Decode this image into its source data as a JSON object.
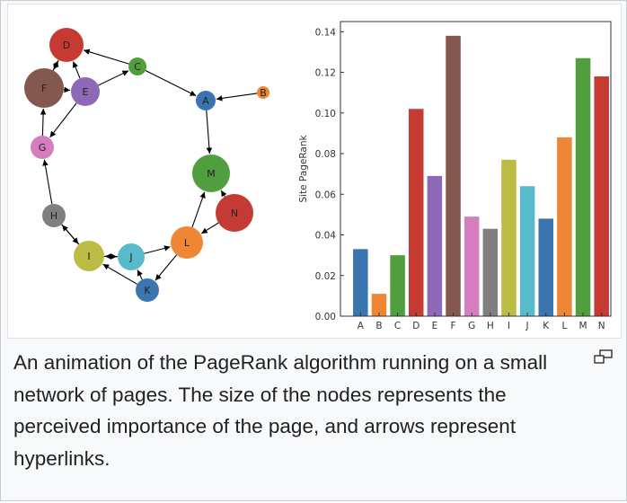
{
  "caption": "An animation of the PageRank algorithm running on a small network of pages. The size of the nodes represents the perceived importance of the page, and arrows represent hyperlinks.",
  "expand_icon": "magnify-clip-icon",
  "graph": {
    "nodes": [
      {
        "id": "A",
        "color": "#3a75af"
      },
      {
        "id": "B",
        "color": "#ef8636"
      },
      {
        "id": "C",
        "color": "#519e3e"
      },
      {
        "id": "D",
        "color": "#c53a32"
      },
      {
        "id": "E",
        "color": "#8d69b8"
      },
      {
        "id": "F",
        "color": "#84584e"
      },
      {
        "id": "G",
        "color": "#d57dbf"
      },
      {
        "id": "H",
        "color": "#7f7f7f"
      },
      {
        "id": "I",
        "color": "#bcbc45"
      },
      {
        "id": "J",
        "color": "#58bbcc"
      },
      {
        "id": "K",
        "color": "#3a75af"
      },
      {
        "id": "L",
        "color": "#ef8636"
      },
      {
        "id": "M",
        "color": "#519e3e"
      },
      {
        "id": "N",
        "color": "#c53a32"
      }
    ],
    "edges": [
      [
        "C",
        "D"
      ],
      [
        "E",
        "C"
      ],
      [
        "C",
        "A"
      ],
      [
        "B",
        "A"
      ],
      [
        "F",
        "D"
      ],
      [
        "D",
        "F"
      ],
      [
        "E",
        "D"
      ],
      [
        "F",
        "E"
      ],
      [
        "E",
        "G"
      ],
      [
        "G",
        "F"
      ],
      [
        "A",
        "M"
      ],
      [
        "H",
        "G"
      ],
      [
        "H",
        "I"
      ],
      [
        "I",
        "H"
      ],
      [
        "J",
        "I"
      ],
      [
        "I",
        "J"
      ],
      [
        "J",
        "L"
      ],
      [
        "K",
        "I"
      ],
      [
        "K",
        "J"
      ],
      [
        "L",
        "K"
      ],
      [
        "L",
        "M"
      ],
      [
        "N",
        "M"
      ],
      [
        "N",
        "L"
      ]
    ]
  },
  "chart_data": {
    "type": "bar",
    "categories": [
      "A",
      "B",
      "C",
      "D",
      "E",
      "F",
      "G",
      "H",
      "I",
      "J",
      "K",
      "L",
      "M",
      "N"
    ],
    "values": [
      0.033,
      0.011,
      0.03,
      0.102,
      0.069,
      0.138,
      0.049,
      0.043,
      0.077,
      0.064,
      0.048,
      0.088,
      0.127,
      0.118
    ],
    "colors": [
      "#3a75af",
      "#ef8636",
      "#519e3e",
      "#c53a32",
      "#8d69b8",
      "#84584e",
      "#d57dbf",
      "#7f7f7f",
      "#bcbc45",
      "#58bbcc",
      "#3a75af",
      "#ef8636",
      "#519e3e",
      "#c53a32"
    ],
    "ylabel": "Site PageRank",
    "xlabel": "",
    "ylim": [
      0,
      0.145
    ],
    "yticks": [
      "0.00",
      "0.02",
      "0.04",
      "0.06",
      "0.08",
      "0.10",
      "0.12",
      "0.14"
    ],
    "grid": false
  }
}
